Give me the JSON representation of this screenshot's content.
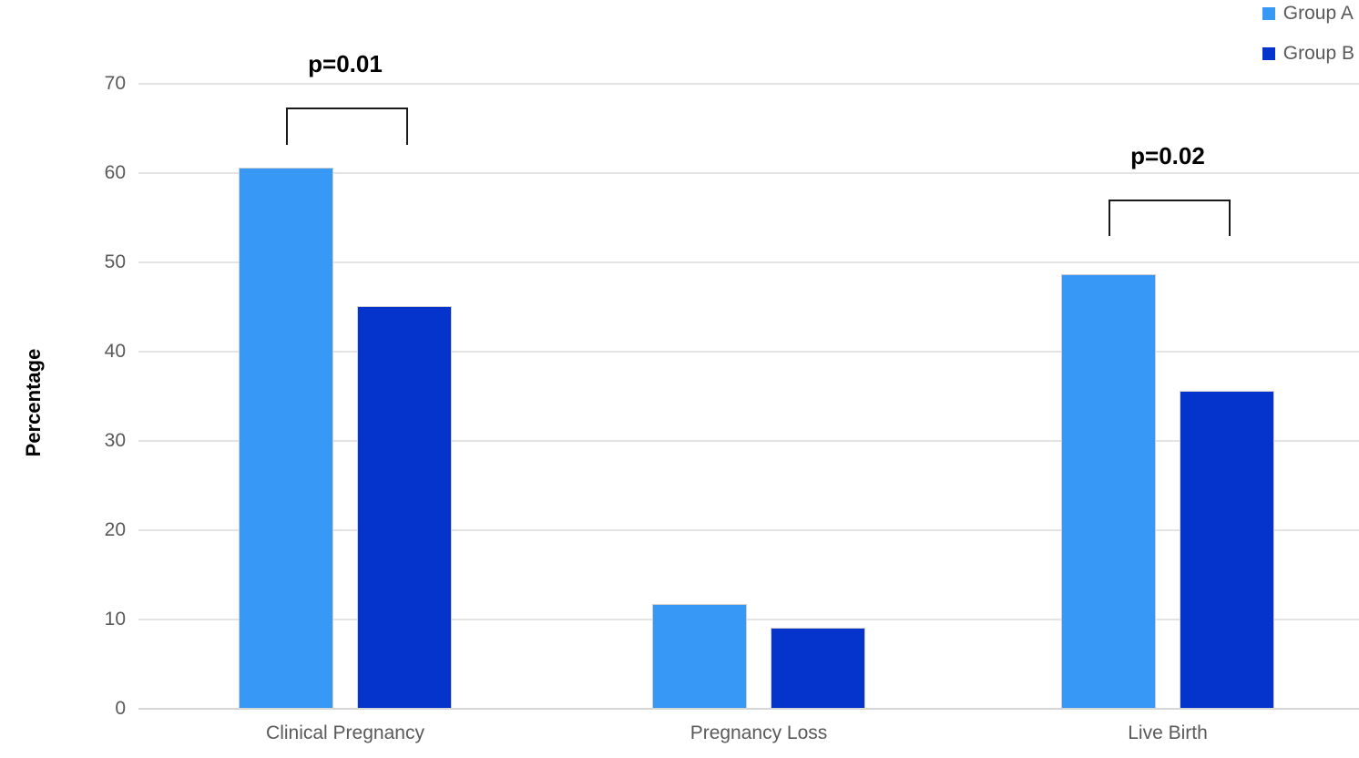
{
  "chart_data": {
    "type": "bar",
    "title": "",
    "xlabel": "",
    "ylabel": "Percentage",
    "ylim": [
      0,
      70
    ],
    "yticks": [
      0,
      10,
      20,
      30,
      40,
      50,
      60,
      70
    ],
    "grid": true,
    "legend_position": "top-right",
    "categories": [
      "Clinical Pregnancy",
      "Pregnancy Loss",
      "Live Birth"
    ],
    "series": [
      {
        "name": "Group A",
        "color": "#3898F6",
        "values": [
          60.5,
          11.6,
          48.6
        ]
      },
      {
        "name": "Group B",
        "color": "#0434CC",
        "values": [
          45.0,
          9.0,
          35.5
        ]
      }
    ],
    "annotations": [
      {
        "label": "p=0.01",
        "category_index": 0,
        "bracket_top_value": 67.3,
        "bracket_leg_value": 63.4
      },
      {
        "label": "p=0.02",
        "category_index": 2,
        "bracket_top_value": 57.0,
        "bracket_leg_value": 53.2
      }
    ]
  },
  "colors": {
    "group_a": "#3898F6",
    "group_b": "#0434CC",
    "gridline": "#E4E4E4",
    "axis_baseline": "#D6D6D6",
    "axis_text": "#595959",
    "annotation_text": "#000000",
    "background": "#FFFFFF"
  }
}
